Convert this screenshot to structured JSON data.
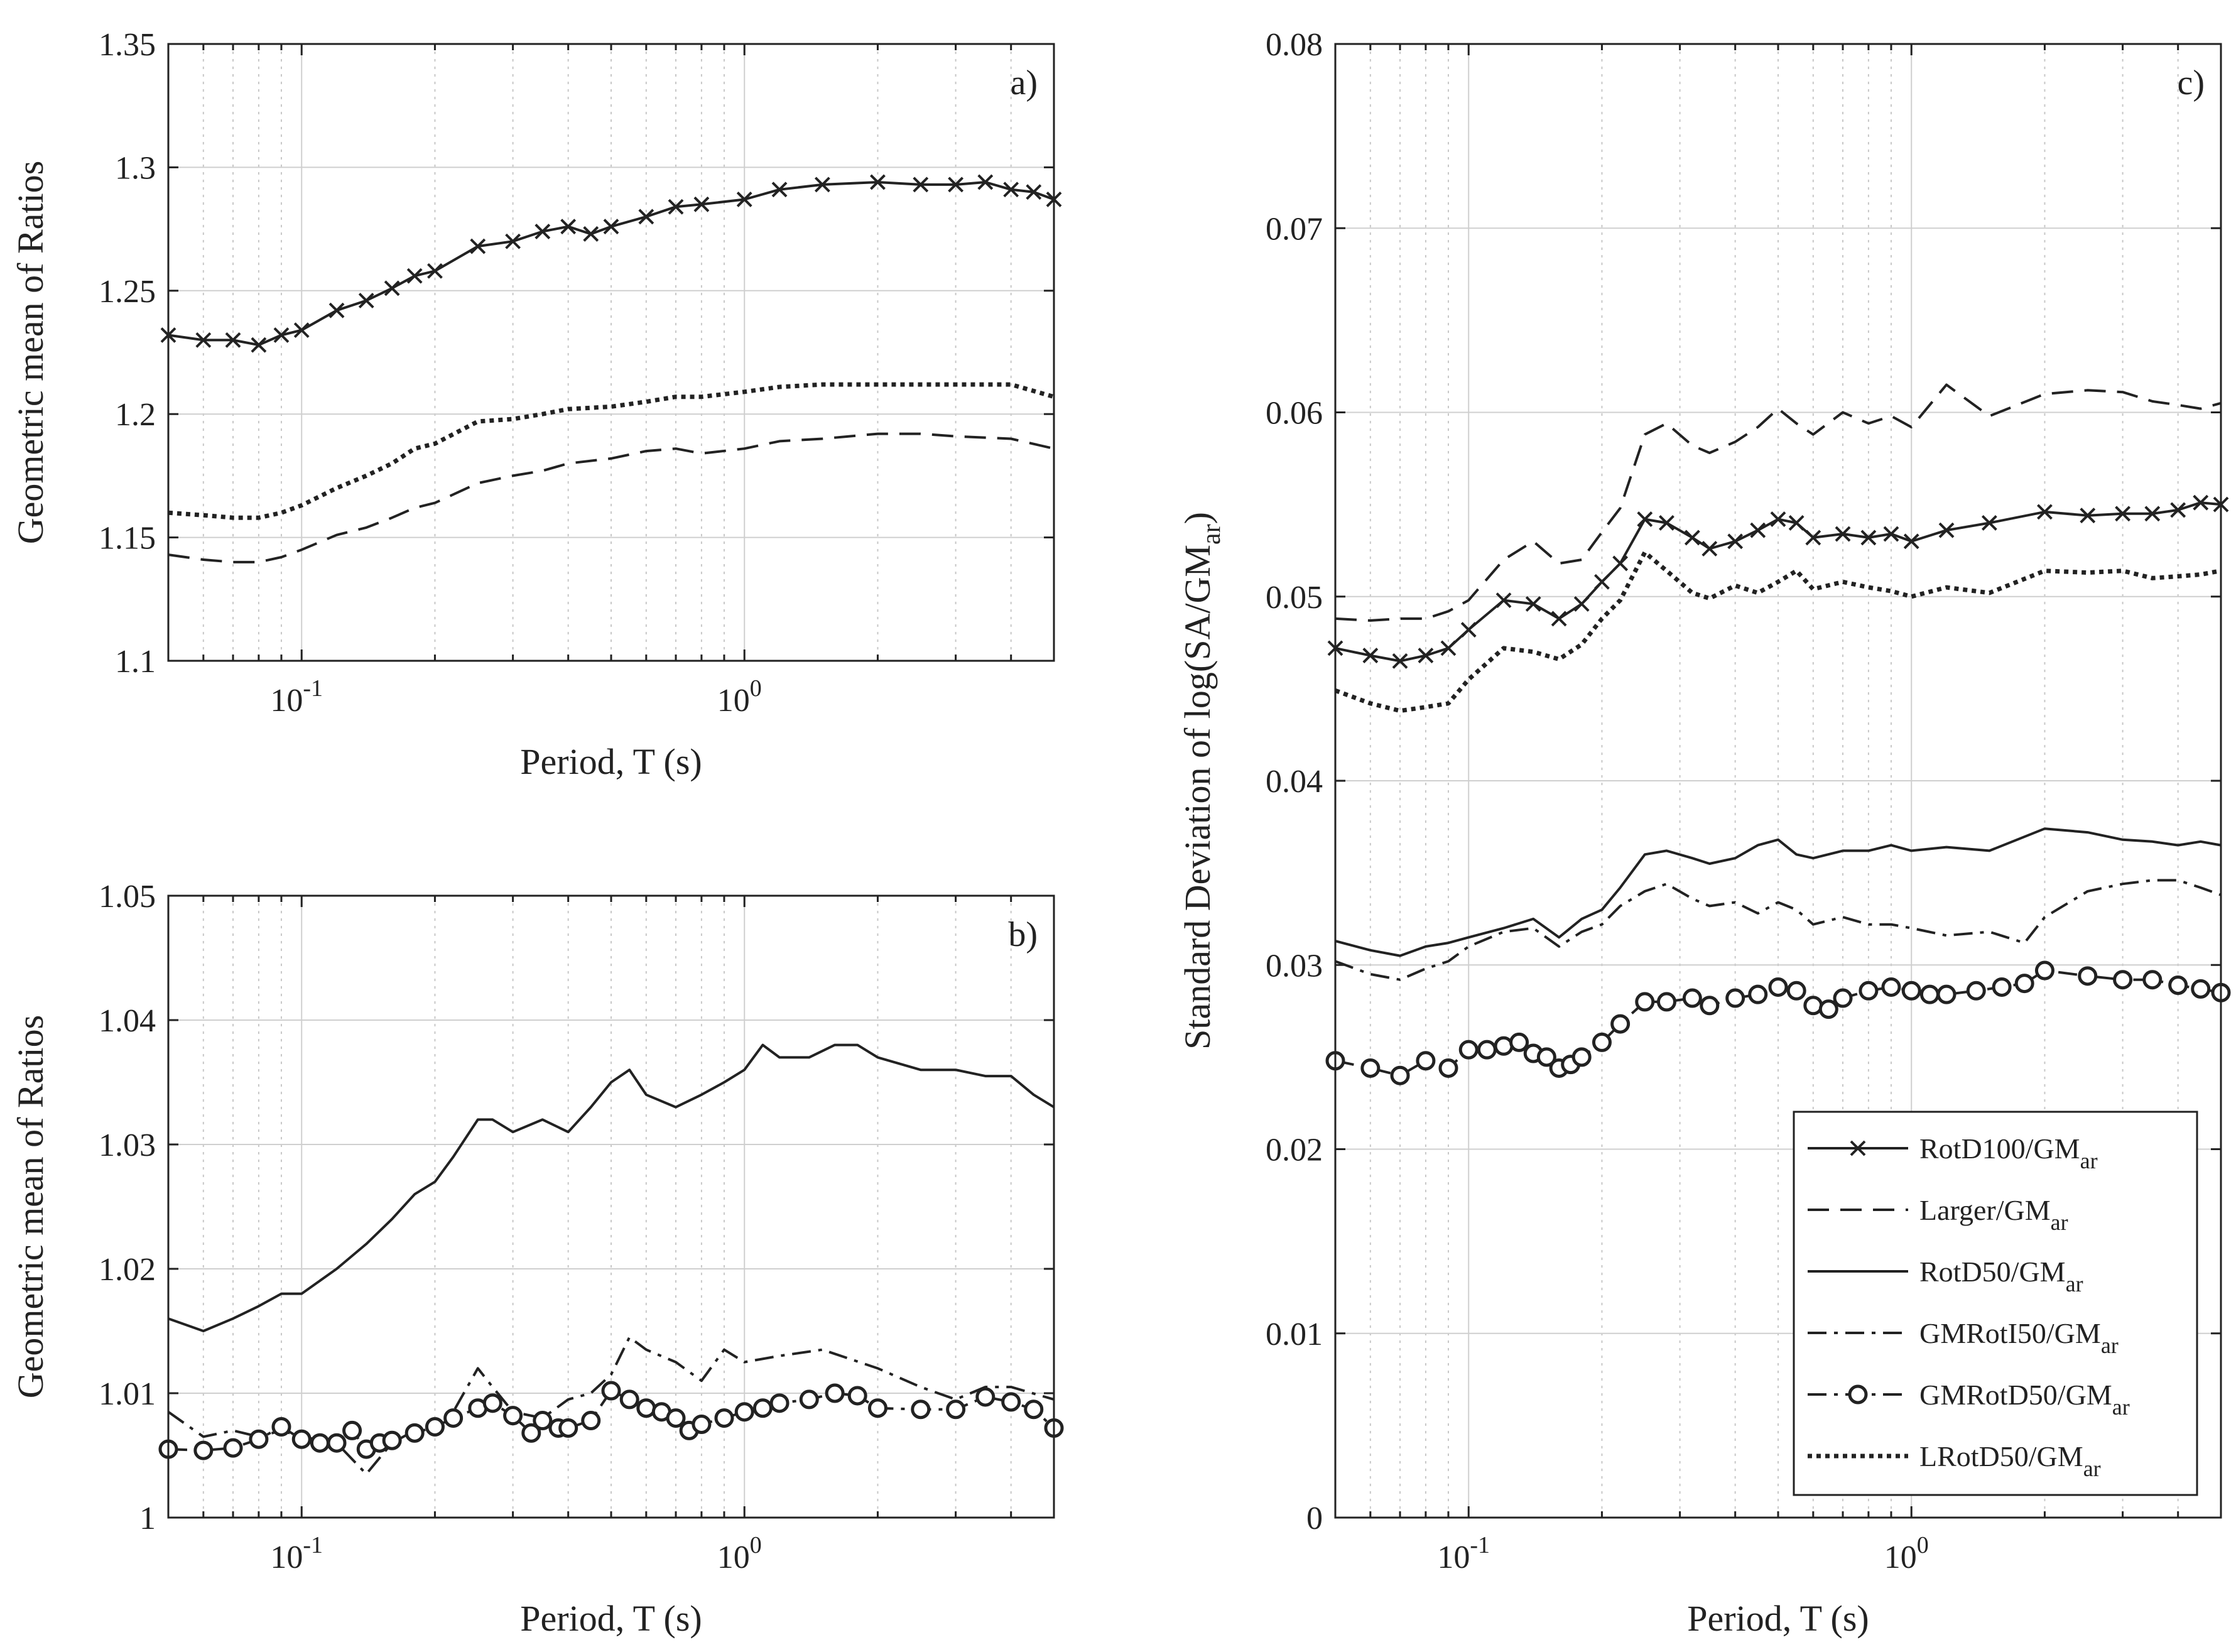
{
  "chart_data": [
    {
      "id": "a",
      "type": "line",
      "panel_label": "a)",
      "xlabel": "Period, T (s)",
      "ylabel": "Geometric mean of Ratios",
      "xscale": "log",
      "xlim": [
        0.05,
        5
      ],
      "ylim": [
        1.1,
        1.35
      ],
      "yticks": [
        "1.1",
        "1.15",
        "1.2",
        "1.25",
        "1.3",
        "1.35"
      ],
      "ytick_values": [
        1.1,
        1.15,
        1.2,
        1.25,
        1.3,
        1.35
      ],
      "xticks": [
        {
          "base": "10",
          "exp": "-1",
          "value": 0.1
        },
        {
          "base": "10",
          "exp": "0",
          "value": 1
        }
      ],
      "series": [
        {
          "name": "RotD100/GMar",
          "style": "solid-x",
          "x": [
            0.05,
            0.06,
            0.07,
            0.08,
            0.09,
            0.1,
            0.12,
            0.14,
            0.16,
            0.18,
            0.2,
            0.25,
            0.3,
            0.35,
            0.4,
            0.45,
            0.5,
            0.6,
            0.7,
            0.8,
            1.0,
            1.2,
            1.5,
            2.0,
            2.5,
            3.0,
            3.5,
            4.0,
            4.5,
            5.0
          ],
          "y": [
            1.232,
            1.23,
            1.23,
            1.228,
            1.232,
            1.234,
            1.242,
            1.246,
            1.251,
            1.256,
            1.258,
            1.268,
            1.27,
            1.274,
            1.276,
            1.273,
            1.276,
            1.28,
            1.284,
            1.285,
            1.287,
            1.291,
            1.293,
            1.294,
            1.293,
            1.293,
            1.294,
            1.291,
            1.29,
            1.287
          ]
        },
        {
          "name": "Larger/GMar",
          "style": "dashed",
          "x": [
            0.05,
            0.06,
            0.07,
            0.08,
            0.09,
            0.1,
            0.12,
            0.14,
            0.16,
            0.18,
            0.2,
            0.25,
            0.3,
            0.35,
            0.4,
            0.5,
            0.6,
            0.7,
            0.8,
            1.0,
            1.2,
            1.5,
            2.0,
            2.5,
            3.0,
            4.0,
            5.0
          ],
          "y": [
            1.143,
            1.141,
            1.14,
            1.14,
            1.142,
            1.145,
            1.151,
            1.154,
            1.158,
            1.162,
            1.164,
            1.172,
            1.175,
            1.177,
            1.18,
            1.182,
            1.185,
            1.186,
            1.184,
            1.186,
            1.189,
            1.19,
            1.192,
            1.192,
            1.191,
            1.19,
            1.186
          ]
        },
        {
          "name": "LRotD50/GMar",
          "style": "dotted",
          "x": [
            0.05,
            0.06,
            0.07,
            0.08,
            0.09,
            0.1,
            0.12,
            0.14,
            0.16,
            0.18,
            0.2,
            0.25,
            0.3,
            0.35,
            0.4,
            0.5,
            0.6,
            0.7,
            0.8,
            1.0,
            1.2,
            1.5,
            2.0,
            2.5,
            3.0,
            4.0,
            5.0
          ],
          "y": [
            1.16,
            1.159,
            1.158,
            1.158,
            1.16,
            1.163,
            1.17,
            1.175,
            1.18,
            1.186,
            1.188,
            1.197,
            1.198,
            1.2,
            1.202,
            1.203,
            1.205,
            1.207,
            1.207,
            1.209,
            1.211,
            1.212,
            1.212,
            1.212,
            1.212,
            1.212,
            1.207
          ]
        }
      ]
    },
    {
      "id": "b",
      "type": "line",
      "panel_label": "b)",
      "xlabel": "Period, T (s)",
      "ylabel": "Geometric mean of Ratios",
      "xscale": "log",
      "xlim": [
        0.05,
        5
      ],
      "ylim": [
        1.0,
        1.05
      ],
      "yticks": [
        "1",
        "1.01",
        "1.02",
        "1.03",
        "1.04",
        "1.05"
      ],
      "ytick_values": [
        1.0,
        1.01,
        1.02,
        1.03,
        1.04,
        1.05
      ],
      "xticks": [
        {
          "base": "10",
          "exp": "-1",
          "value": 0.1
        },
        {
          "base": "10",
          "exp": "0",
          "value": 1
        }
      ],
      "series": [
        {
          "name": "RotD50/GMar",
          "style": "solid",
          "x": [
            0.05,
            0.06,
            0.07,
            0.08,
            0.09,
            0.1,
            0.12,
            0.14,
            0.16,
            0.18,
            0.2,
            0.22,
            0.25,
            0.27,
            0.3,
            0.35,
            0.4,
            0.45,
            0.5,
            0.55,
            0.6,
            0.7,
            0.8,
            0.9,
            1.0,
            1.1,
            1.2,
            1.4,
            1.6,
            1.8,
            2.0,
            2.5,
            3.0,
            3.5,
            4.0,
            4.5,
            5.0
          ],
          "y": [
            1.016,
            1.015,
            1.016,
            1.017,
            1.018,
            1.018,
            1.02,
            1.022,
            1.024,
            1.026,
            1.027,
            1.029,
            1.032,
            1.032,
            1.031,
            1.032,
            1.031,
            1.033,
            1.035,
            1.036,
            1.034,
            1.033,
            1.034,
            1.035,
            1.036,
            1.038,
            1.037,
            1.037,
            1.038,
            1.038,
            1.037,
            1.036,
            1.036,
            1.0355,
            1.0355,
            1.034,
            1.033
          ]
        },
        {
          "name": "GMRotI50/GMar",
          "style": "dashdot",
          "x": [
            0.05,
            0.06,
            0.07,
            0.08,
            0.09,
            0.1,
            0.12,
            0.14,
            0.16,
            0.18,
            0.2,
            0.22,
            0.25,
            0.27,
            0.3,
            0.35,
            0.4,
            0.45,
            0.5,
            0.55,
            0.6,
            0.7,
            0.8,
            0.9,
            1.0,
            1.2,
            1.5,
            2.0,
            2.5,
            3.0,
            3.5,
            4.0,
            5.0
          ],
          "y": [
            1.0085,
            1.0065,
            1.007,
            1.0065,
            1.007,
            1.0065,
            1.006,
            1.0035,
            1.006,
            1.007,
            1.007,
            1.0085,
            1.012,
            1.0105,
            1.0085,
            1.008,
            1.0095,
            1.01,
            1.0115,
            1.0145,
            1.0135,
            1.0125,
            1.011,
            1.0135,
            1.0125,
            1.013,
            1.0135,
            1.012,
            1.0105,
            1.0095,
            1.0105,
            1.0105,
            1.0095
          ]
        },
        {
          "name": "GMRotD50/GMar",
          "style": "dashdot-o",
          "x": [
            0.05,
            0.06,
            0.07,
            0.08,
            0.09,
            0.1,
            0.11,
            0.12,
            0.13,
            0.14,
            0.15,
            0.16,
            0.18,
            0.2,
            0.22,
            0.25,
            0.27,
            0.3,
            0.33,
            0.35,
            0.38,
            0.4,
            0.45,
            0.5,
            0.55,
            0.6,
            0.65,
            0.7,
            0.75,
            0.8,
            0.9,
            1.0,
            1.1,
            1.2,
            1.4,
            1.6,
            1.8,
            2.0,
            2.5,
            3.0,
            3.5,
            4.0,
            4.5,
            5.0
          ],
          "y": [
            1.0055,
            1.0054,
            1.0056,
            1.0063,
            1.0073,
            1.0063,
            1.006,
            1.006,
            1.007,
            1.0055,
            1.006,
            1.0062,
            1.0068,
            1.0073,
            1.008,
            1.0088,
            1.0092,
            1.0082,
            1.0068,
            1.0078,
            1.0072,
            1.0072,
            1.0078,
            1.0102,
            1.0095,
            1.0088,
            1.0085,
            1.008,
            1.007,
            1.0075,
            1.008,
            1.0085,
            1.0088,
            1.0092,
            1.0095,
            1.01,
            1.0098,
            1.0088,
            1.0087,
            1.0087,
            1.0097,
            1.0093,
            1.0087,
            1.0072
          ]
        }
      ]
    },
    {
      "id": "c",
      "type": "line",
      "panel_label": "c)",
      "xlabel": "Period, T (s)",
      "ylabel_main": "Standard Deviation of log(SA/GM",
      "ylabel_sub": "ar",
      "ylabel_close": ")",
      "xscale": "log",
      "xlim": [
        0.05,
        5
      ],
      "ylim": [
        0,
        0.08
      ],
      "yticks": [
        "0",
        "0.01",
        "0.02",
        "0.03",
        "0.04",
        "0.05",
        "0.06",
        "0.07",
        "0.08"
      ],
      "ytick_values": [
        0,
        0.01,
        0.02,
        0.03,
        0.04,
        0.05,
        0.06,
        0.07,
        0.08
      ],
      "xticks": [
        {
          "base": "10",
          "exp": "-1",
          "value": 0.1
        },
        {
          "base": "10",
          "exp": "0",
          "value": 1
        }
      ],
      "legend_position": "bottom-right",
      "series": [
        {
          "name": "RotD100/GMar",
          "style": "solid-x",
          "x": [
            0.05,
            0.06,
            0.07,
            0.08,
            0.09,
            0.1,
            0.12,
            0.14,
            0.16,
            0.18,
            0.2,
            0.22,
            0.25,
            0.28,
            0.32,
            0.35,
            0.4,
            0.45,
            0.5,
            0.55,
            0.6,
            0.7,
            0.8,
            0.9,
            1.0,
            1.2,
            1.5,
            2.0,
            2.5,
            3.0,
            3.5,
            4.0,
            4.5,
            5.0
          ],
          "y": [
            0.0472,
            0.0468,
            0.0465,
            0.0468,
            0.0472,
            0.0482,
            0.0498,
            0.0496,
            0.0488,
            0.0496,
            0.0508,
            0.0518,
            0.0542,
            0.054,
            0.0532,
            0.0526,
            0.053,
            0.0536,
            0.0542,
            0.054,
            0.0532,
            0.0534,
            0.0532,
            0.0534,
            0.053,
            0.0536,
            0.054,
            0.0546,
            0.0544,
            0.0545,
            0.0545,
            0.0547,
            0.0551,
            0.055
          ]
        },
        {
          "name": "Larger/GMar",
          "style": "dashed",
          "x": [
            0.05,
            0.06,
            0.07,
            0.08,
            0.09,
            0.1,
            0.12,
            0.14,
            0.16,
            0.18,
            0.2,
            0.22,
            0.25,
            0.28,
            0.32,
            0.35,
            0.4,
            0.45,
            0.5,
            0.55,
            0.6,
            0.7,
            0.8,
            0.9,
            1.0,
            1.2,
            1.5,
            2.0,
            2.5,
            3.0,
            3.5,
            4.0,
            4.5,
            5.0
          ],
          "y": [
            0.0488,
            0.0487,
            0.0488,
            0.0488,
            0.0492,
            0.0498,
            0.052,
            0.053,
            0.0518,
            0.052,
            0.0535,
            0.0548,
            0.0588,
            0.0594,
            0.0582,
            0.0578,
            0.0584,
            0.0592,
            0.0602,
            0.0594,
            0.0588,
            0.06,
            0.0594,
            0.0598,
            0.0592,
            0.0615,
            0.0598,
            0.061,
            0.0612,
            0.0611,
            0.0606,
            0.0604,
            0.0602,
            0.0605
          ]
        },
        {
          "name": "RotD50/GMar",
          "style": "solid",
          "x": [
            0.05,
            0.06,
            0.07,
            0.08,
            0.09,
            0.1,
            0.12,
            0.14,
            0.16,
            0.18,
            0.2,
            0.22,
            0.25,
            0.28,
            0.32,
            0.35,
            0.4,
            0.45,
            0.5,
            0.55,
            0.6,
            0.7,
            0.8,
            0.9,
            1.0,
            1.2,
            1.5,
            2.0,
            2.5,
            3.0,
            3.5,
            4.0,
            4.5,
            5.0
          ],
          "y": [
            0.0313,
            0.0308,
            0.0305,
            0.031,
            0.0312,
            0.0315,
            0.032,
            0.0325,
            0.0315,
            0.0325,
            0.033,
            0.0342,
            0.036,
            0.0362,
            0.0358,
            0.0355,
            0.0358,
            0.0365,
            0.0368,
            0.036,
            0.0358,
            0.0362,
            0.0362,
            0.0365,
            0.0362,
            0.0364,
            0.0362,
            0.0374,
            0.0372,
            0.0368,
            0.0367,
            0.0365,
            0.0367,
            0.0365
          ]
        },
        {
          "name": "GMRotI50/GMar",
          "style": "dashdot",
          "x": [
            0.05,
            0.06,
            0.07,
            0.08,
            0.09,
            0.1,
            0.12,
            0.14,
            0.16,
            0.18,
            0.2,
            0.22,
            0.25,
            0.28,
            0.32,
            0.35,
            0.4,
            0.45,
            0.5,
            0.55,
            0.6,
            0.7,
            0.8,
            0.9,
            1.0,
            1.2,
            1.5,
            1.8,
            2.0,
            2.5,
            3.0,
            3.5,
            4.0,
            4.5,
            5.0
          ],
          "y": [
            0.0302,
            0.0295,
            0.0292,
            0.0298,
            0.0302,
            0.031,
            0.0318,
            0.032,
            0.031,
            0.0318,
            0.0322,
            0.0332,
            0.034,
            0.0344,
            0.0336,
            0.0332,
            0.0334,
            0.0328,
            0.0334,
            0.033,
            0.0322,
            0.0326,
            0.0322,
            0.0322,
            0.032,
            0.0316,
            0.0318,
            0.0312,
            0.0326,
            0.034,
            0.0344,
            0.0346,
            0.0346,
            0.0342,
            0.0338
          ]
        },
        {
          "name": "GMRotD50/GMar",
          "style": "dashdot-o",
          "x": [
            0.05,
            0.06,
            0.07,
            0.08,
            0.09,
            0.1,
            0.11,
            0.12,
            0.13,
            0.14,
            0.15,
            0.16,
            0.17,
            0.18,
            0.2,
            0.22,
            0.25,
            0.28,
            0.32,
            0.35,
            0.4,
            0.45,
            0.5,
            0.55,
            0.6,
            0.65,
            0.7,
            0.8,
            0.9,
            1.0,
            1.1,
            1.2,
            1.4,
            1.6,
            1.8,
            2.0,
            2.5,
            3.0,
            3.5,
            4.0,
            4.5,
            5.0
          ],
          "y": [
            0.0248,
            0.0244,
            0.024,
            0.0248,
            0.0244,
            0.0254,
            0.0254,
            0.0256,
            0.0258,
            0.0252,
            0.025,
            0.0244,
            0.0246,
            0.025,
            0.0258,
            0.0268,
            0.028,
            0.028,
            0.0282,
            0.0278,
            0.0282,
            0.0284,
            0.0288,
            0.0286,
            0.0278,
            0.0276,
            0.0282,
            0.0286,
            0.0288,
            0.0286,
            0.0284,
            0.0284,
            0.0286,
            0.0288,
            0.029,
            0.0297,
            0.0294,
            0.0292,
            0.0292,
            0.0289,
            0.0287,
            0.0285
          ]
        },
        {
          "name": "LRotD50/GMar",
          "style": "dotted",
          "x": [
            0.05,
            0.06,
            0.07,
            0.08,
            0.09,
            0.1,
            0.12,
            0.14,
            0.16,
            0.18,
            0.2,
            0.22,
            0.25,
            0.28,
            0.32,
            0.35,
            0.4,
            0.45,
            0.5,
            0.55,
            0.6,
            0.7,
            0.8,
            0.9,
            1.0,
            1.2,
            1.5,
            2.0,
            2.5,
            3.0,
            3.5,
            4.0,
            4.5,
            5.0
          ],
          "y": [
            0.0449,
            0.0442,
            0.0438,
            0.044,
            0.0442,
            0.0455,
            0.0472,
            0.047,
            0.0466,
            0.0474,
            0.0488,
            0.0498,
            0.0524,
            0.0514,
            0.0502,
            0.0499,
            0.0506,
            0.0502,
            0.0508,
            0.0514,
            0.0504,
            0.0508,
            0.0505,
            0.0503,
            0.05,
            0.0505,
            0.0502,
            0.0514,
            0.0513,
            0.0514,
            0.051,
            0.0511,
            0.0512,
            0.0514
          ]
        }
      ]
    }
  ],
  "legend": [
    {
      "main": "RotD100/GM",
      "sub": "ar",
      "style": "solid-x"
    },
    {
      "main": "Larger/GM",
      "sub": "ar",
      "style": "dashed"
    },
    {
      "main": "RotD50/GM",
      "sub": "ar",
      "style": "solid"
    },
    {
      "main": "GMRotI50/GM",
      "sub": "ar",
      "style": "dashdot"
    },
    {
      "main": "GMRotD50/GM",
      "sub": "ar",
      "style": "dashdot-o"
    },
    {
      "main": "LRotD50/GM",
      "sub": "ar",
      "style": "dotted"
    }
  ],
  "colors": {
    "line": "#222222",
    "grid": "#cfcfcf",
    "background": "#ffffff"
  }
}
